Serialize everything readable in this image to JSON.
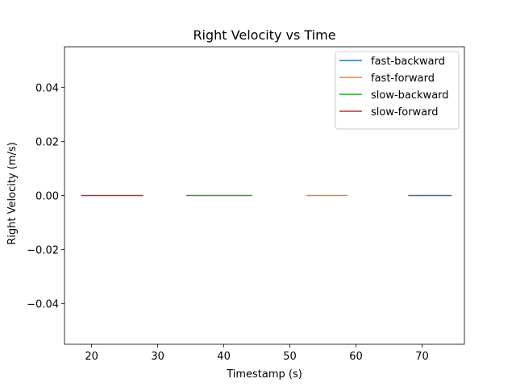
{
  "chart_data": {
    "type": "line",
    "title": "Right Velocity vs Time",
    "xlabel": "Timestamp (s)",
    "ylabel": "Right Velocity (m/s)",
    "xlim": [
      15.9,
      76.4
    ],
    "ylim": [
      -0.055,
      0.055
    ],
    "xticks": [
      20,
      30,
      40,
      50,
      60,
      70
    ],
    "xtick_labels": [
      "20",
      "30",
      "40",
      "50",
      "60",
      "70"
    ],
    "yticks": [
      -0.04,
      -0.02,
      0.0,
      0.02,
      0.04
    ],
    "ytick_labels": [
      "−0.04",
      "−0.02",
      "0.00",
      "0.02",
      "0.04"
    ],
    "grid": false,
    "legend_position": "top-right",
    "series": [
      {
        "name": "fast-backward",
        "color": "#1f77b4",
        "x": [
          67.9,
          74.5
        ],
        "y": [
          0.0,
          0.0
        ]
      },
      {
        "name": "fast-forward",
        "color": "#ff7f0e",
        "x": [
          52.5,
          58.7
        ],
        "y": [
          0.0,
          0.0
        ]
      },
      {
        "name": "slow-backward",
        "color": "#2ca02c",
        "x": [
          34.3,
          44.3
        ],
        "y": [
          0.0,
          0.0
        ]
      },
      {
        "name": "slow-forward",
        "color": "#d62728",
        "x": [
          18.4,
          27.8
        ],
        "y": [
          0.0,
          0.0
        ]
      }
    ]
  }
}
